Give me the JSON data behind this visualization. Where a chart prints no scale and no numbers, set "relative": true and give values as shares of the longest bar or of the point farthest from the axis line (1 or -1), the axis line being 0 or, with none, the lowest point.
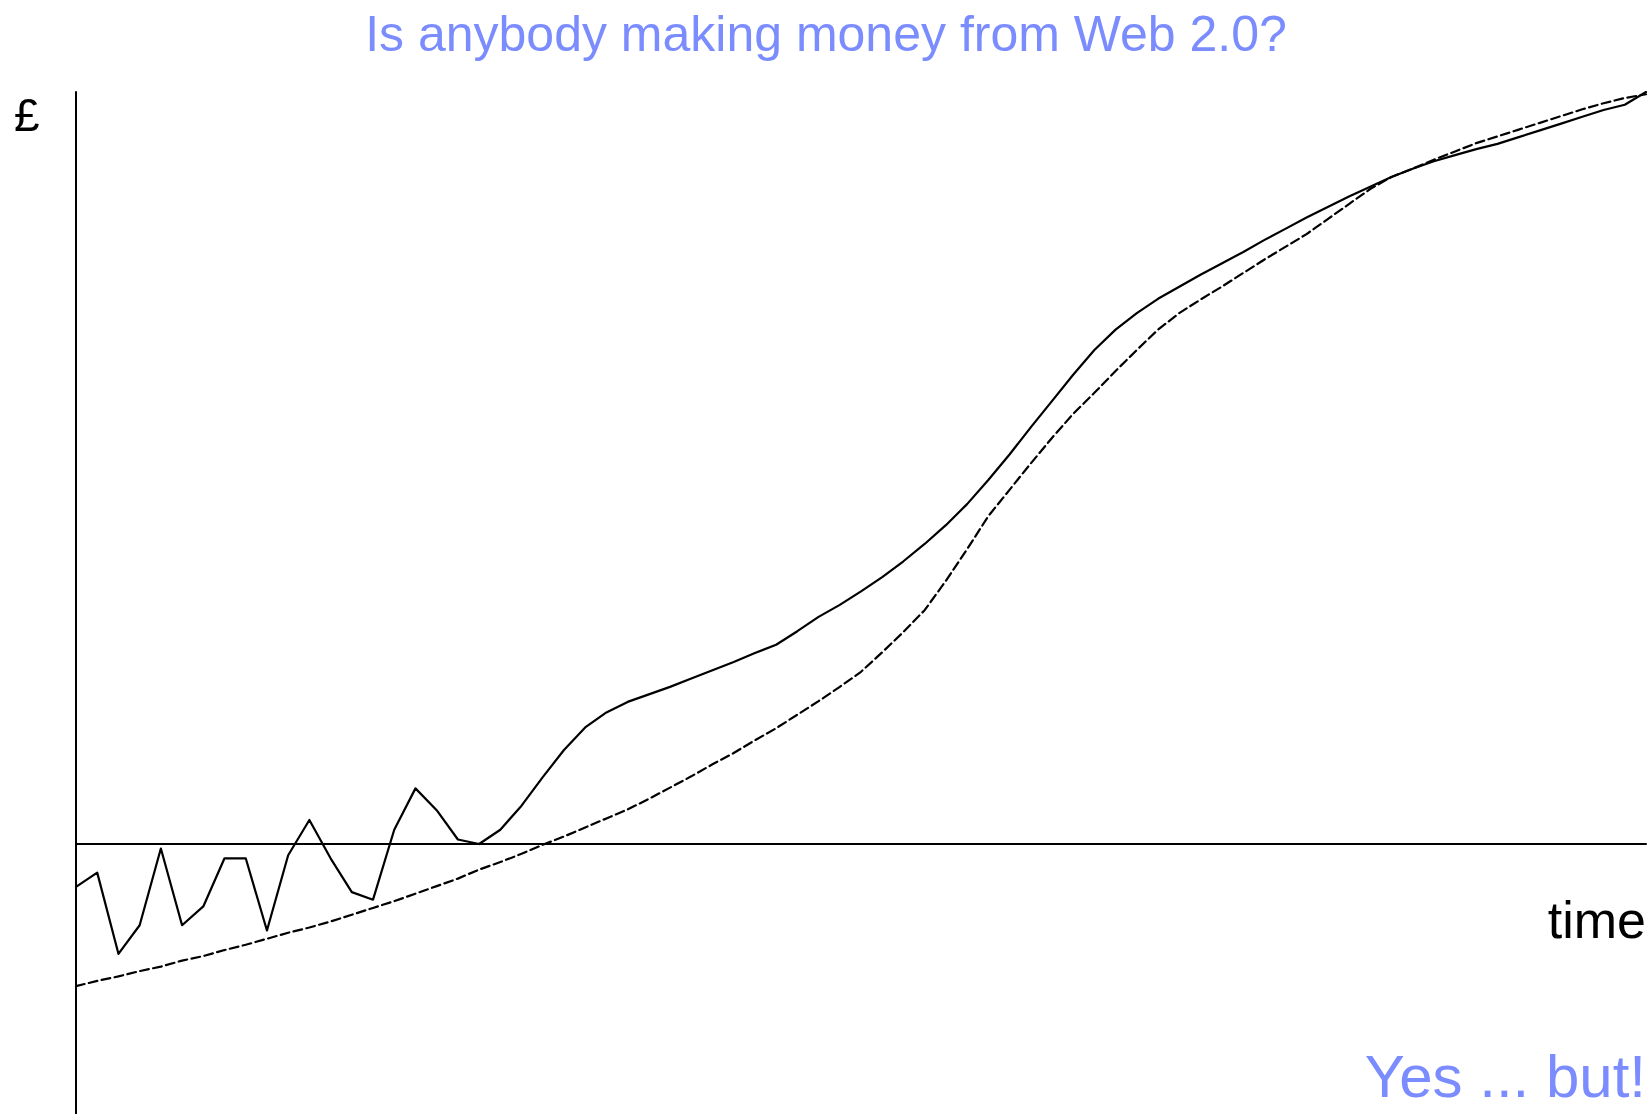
{
  "chart_data": {
    "type": "line",
    "title": "Is anybody making money from Web 2.0?",
    "xlabel": "time",
    "ylabel": "£",
    "relative": true,
    "tick_labels": false,
    "grid": false,
    "marker": "none",
    "annotations": [
      "Yes ... but!"
    ],
    "categories": [
      null,
      null,
      null,
      null,
      null,
      null,
      null,
      null,
      null,
      null,
      null,
      null,
      null,
      null,
      null,
      null,
      null,
      null,
      null,
      null,
      null,
      null,
      null,
      null,
      null,
      null,
      null,
      null,
      null,
      null,
      null,
      null,
      null,
      null,
      null,
      null,
      null,
      null,
      null,
      null,
      null,
      null,
      null,
      null,
      null,
      null,
      null,
      null,
      null,
      null,
      null,
      null,
      null,
      null,
      null,
      null,
      null,
      null,
      null,
      null,
      null,
      null,
      null,
      null,
      null,
      null,
      null,
      null,
      null,
      null,
      null,
      null,
      null,
      null,
      null
    ],
    "series": [
      {
        "color": "#000000",
        "line_style": "solid",
        "values": [
          -0.057,
          -0.038,
          -0.146,
          -0.108,
          -0.006,
          -0.108,
          -0.083,
          -0.019,
          -0.019,
          -0.115,
          -0.015,
          0.032,
          -0.019,
          -0.064,
          -0.074,
          0.019,
          0.074,
          0.045,
          0.006,
          0,
          0.019,
          0.051,
          0.089,
          0.125,
          0.155,
          0.175,
          0.189,
          0.199,
          0.209,
          0.22,
          0.231,
          0.242,
          0.254,
          0.265,
          0.283,
          0.302,
          0.318,
          0.336,
          0.355,
          0.376,
          0.399,
          0.424,
          0.452,
          0.484,
          0.518,
          0.554,
          0.589,
          0.624,
          0.657,
          0.684,
          0.706,
          0.725,
          0.741,
          0.757,
          0.772,
          0.787,
          0.803,
          0.818,
          0.833,
          0.847,
          0.861,
          0.874,
          0.887,
          0.898,
          0.908,
          0.916,
          0.924,
          0.931,
          0.94,
          0.949,
          0.958,
          0.967,
          0.976,
          0.983,
          1
        ]
      },
      {
        "color": "#000000",
        "line_style": "dashed",
        "values": [
          -0.189,
          -0.182,
          -0.176,
          -0.169,
          -0.163,
          -0.155,
          -0.149,
          -0.141,
          -0.134,
          -0.126,
          -0.118,
          -0.111,
          -0.103,
          -0.094,
          -0.085,
          -0.076,
          -0.066,
          -0.056,
          -0.046,
          -0.034,
          -0.024,
          -0.013,
          -0.001,
          0.01,
          0.022,
          0.034,
          0.046,
          0.06,
          0.075,
          0.09,
          0.106,
          0.121,
          0.138,
          0.154,
          0.172,
          0.19,
          0.209,
          0.229,
          0.255,
          0.282,
          0.311,
          0.35,
          0.392,
          0.436,
          0.471,
          0.506,
          0.54,
          0.572,
          0.6,
          0.629,
          0.657,
          0.684,
          0.706,
          0.724,
          0.741,
          0.759,
          0.777,
          0.794,
          0.811,
          0.831,
          0.851,
          0.871,
          0.887,
          0.898,
          0.91,
          0.921,
          0.932,
          0.941,
          0.95,
          0.959,
          0.968,
          0.977,
          0.985,
          0.992,
          0.997
        ]
      }
    ]
  }
}
